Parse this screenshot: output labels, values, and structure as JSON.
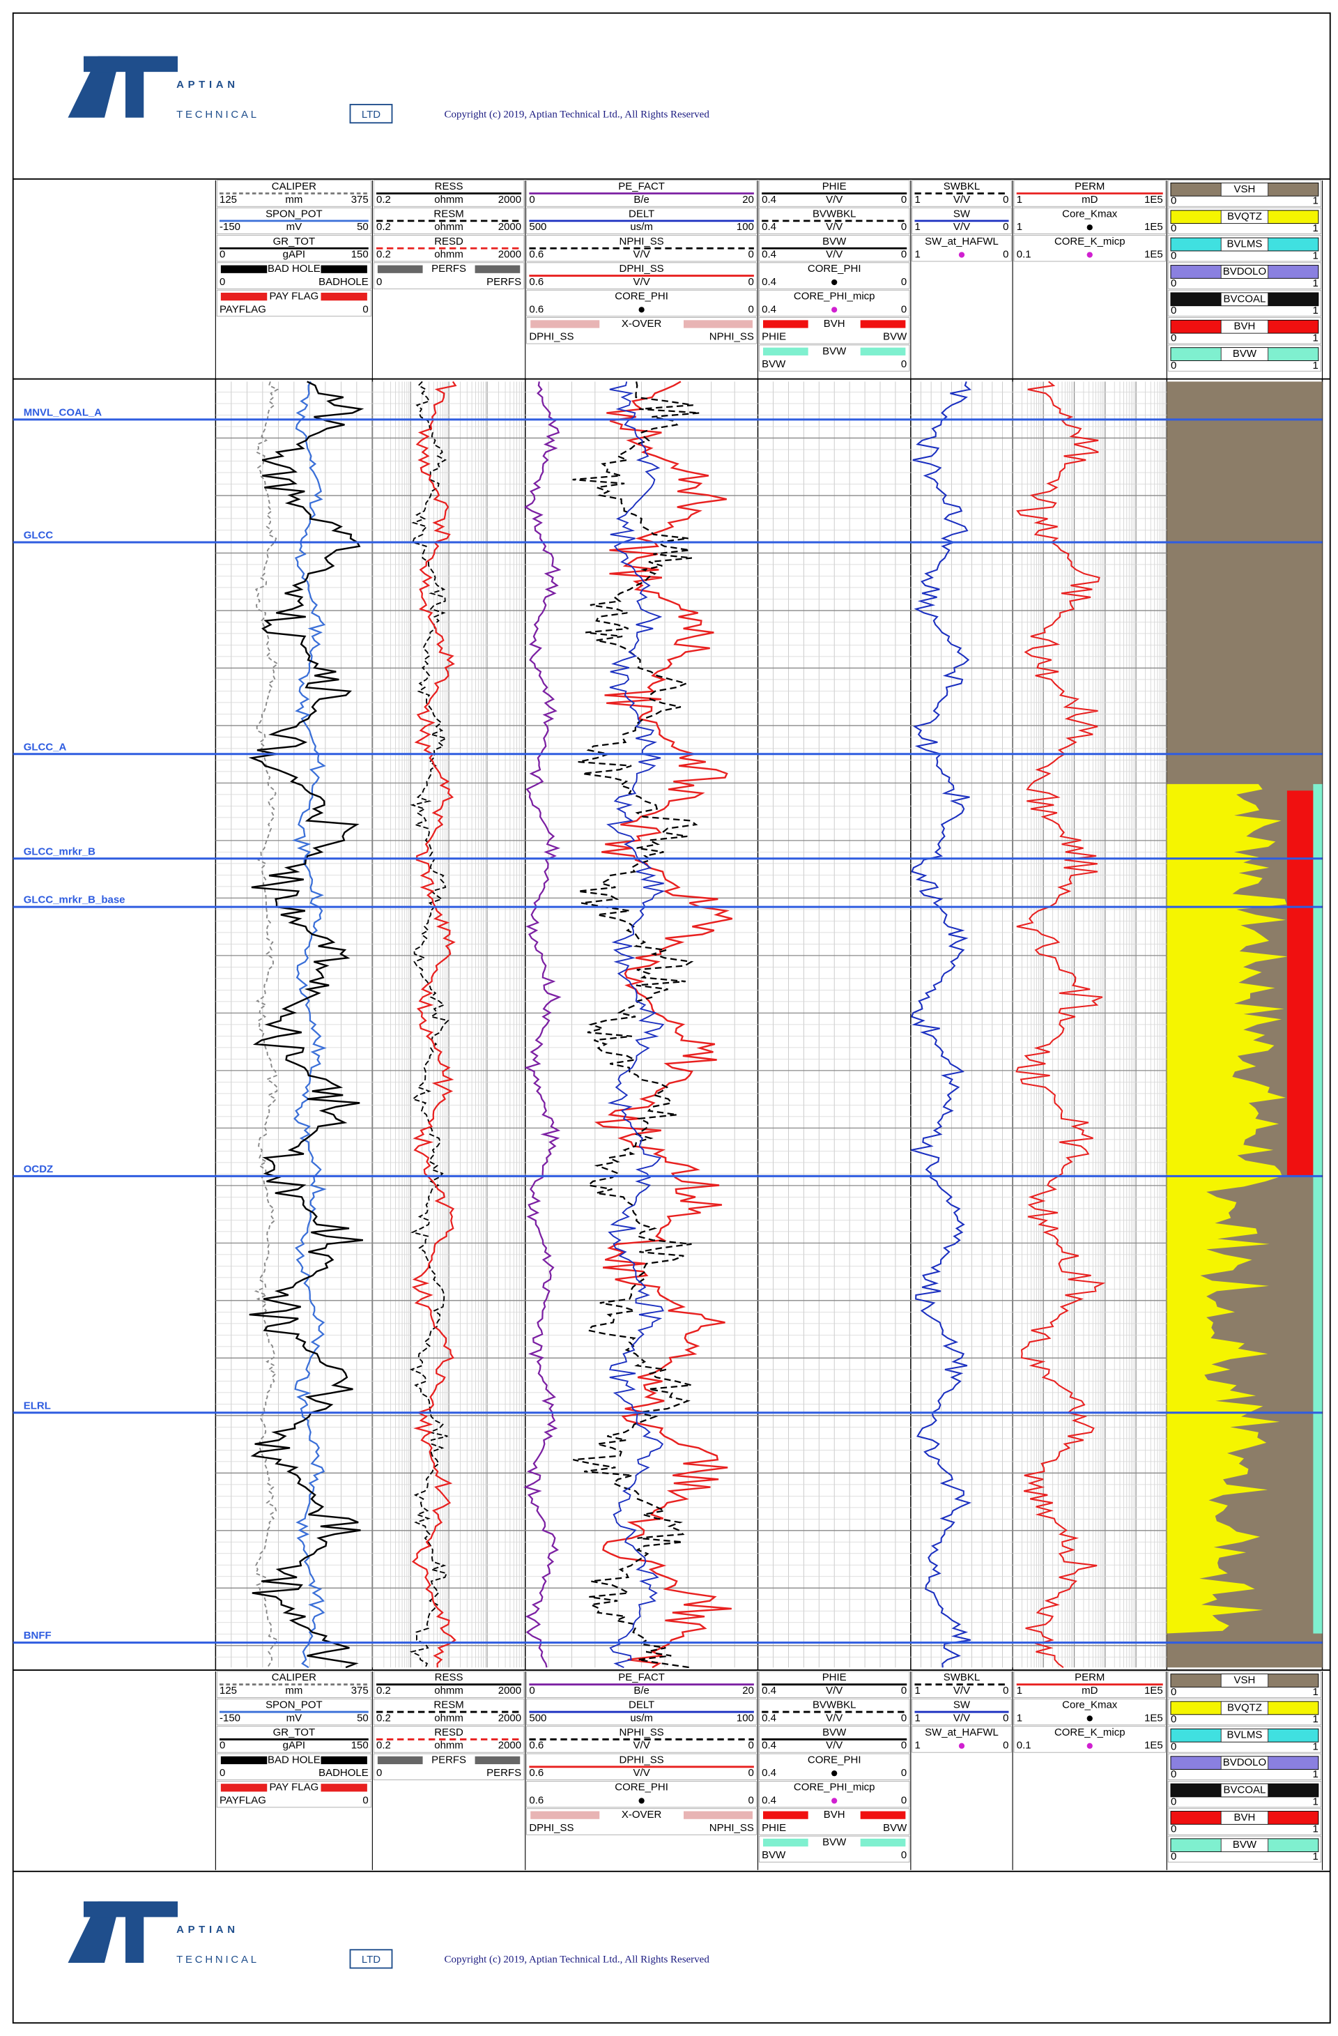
{
  "header": {
    "logo_main": "APTIAN",
    "logo_sub": "TECHNICAL",
    "logo_ltd": "LTD",
    "copyright": "Copyright (c) 2019, Aptian Technical Ltd., All Rights Reserved"
  },
  "tracks": [
    {
      "curves": [
        {
          "name": "CALIPER",
          "left": "125",
          "unit": "mm",
          "right": "375",
          "color": "#777777",
          "dash": "3,2"
        },
        {
          "name": "SPON_POT",
          "left": "-150",
          "unit": "mV",
          "right": "50",
          "color": "#3a6fd8"
        },
        {
          "name": "GR_TOT",
          "left": "0",
          "unit": "gAPI",
          "right": "150",
          "color": "#000000"
        },
        {
          "name": "BAD HOLE",
          "left": "0",
          "right": "BADHOLE",
          "fill": "#000000"
        },
        {
          "name": "PAY FLAG",
          "left": "PAYFLAG",
          "right": "0",
          "fill": "#e8201f"
        }
      ]
    },
    {
      "curves": [
        {
          "name": "RESS",
          "left": "0.2",
          "unit": "ohmm",
          "right": "2000",
          "color": "#000000"
        },
        {
          "name": "RESM",
          "left": "0.2",
          "unit": "ohmm",
          "right": "2000",
          "color": "#000000",
          "dash": "5,3"
        },
        {
          "name": "RESD",
          "left": "0.2",
          "unit": "ohmm",
          "right": "2000",
          "color": "#e8201f",
          "dash": "5,3"
        },
        {
          "name": "PERFS",
          "left": "0",
          "right": "PERFS",
          "fill": "#666666"
        }
      ]
    },
    {
      "curves": [
        {
          "name": "PE_FACT",
          "left": "0",
          "unit": "B/e",
          "right": "20",
          "color": "#7b1fa2"
        },
        {
          "name": "DELT",
          "left": "500",
          "unit": "us/m",
          "right": "100",
          "color": "#1a2fc0"
        },
        {
          "name": "NPHI_SS",
          "left": "0.6",
          "unit": "V/V",
          "right": "0",
          "color": "#000000",
          "dash": "5,3"
        },
        {
          "name": "DPHI_SS",
          "left": "0.6",
          "unit": "V/V",
          "right": "0",
          "color": "#e8201f"
        },
        {
          "name": "CORE_PHI",
          "left": "0.6",
          "right": "0",
          "marker": "#000000"
        },
        {
          "name": "X-OVER",
          "left": "DPHI_SS",
          "right": "NPHI_SS",
          "fill": "#e8b4b4"
        }
      ]
    },
    {
      "curves": [
        {
          "name": "PHIE",
          "left": "0.4",
          "unit": "V/V",
          "right": "0",
          "color": "#000000"
        },
        {
          "name": "BVWBKL",
          "left": "0.4",
          "unit": "V/V",
          "right": "0",
          "color": "#000000",
          "dash": "5,3"
        },
        {
          "name": "BVW",
          "left": "0.4",
          "unit": "V/V",
          "right": "0",
          "color": "#000000"
        },
        {
          "name": "CORE_PHI",
          "left": "0.4",
          "right": "0",
          "marker": "#000000"
        },
        {
          "name": "CORE_PHI_micp",
          "left": "0.4",
          "right": "0",
          "marker": "#d020d0"
        },
        {
          "name": "BVH",
          "left": "PHIE",
          "right": "BVW",
          "fill": "#f01010"
        },
        {
          "name": "BVW",
          "left": "BVW",
          "right": "0",
          "fill": "#7ff0cf"
        }
      ]
    },
    {
      "curves": [
        {
          "name": "SWBKL",
          "left": "1",
          "unit": "V/V",
          "right": "0",
          "color": "#000000",
          "dash": "5,3"
        },
        {
          "name": "SW",
          "left": "1",
          "unit": "V/V",
          "right": "0",
          "color": "#1a2fc0"
        },
        {
          "name": "SW_at_HAFWL",
          "left": "1",
          "right": "0",
          "marker": "#d020d0"
        }
      ]
    },
    {
      "curves": [
        {
          "name": "PERM",
          "left": "1",
          "unit": "mD",
          "right": "1E5",
          "color": "#e8201f"
        },
        {
          "name": "Core_Kmax",
          "left": "1",
          "right": "1E5",
          "marker": "#000000"
        },
        {
          "name": "CORE_K_micp",
          "left": "0.1",
          "right": "1E5",
          "marker": "#d020d0"
        }
      ]
    },
    {
      "curves": [
        {
          "name": "VSH",
          "left": "0",
          "right": "1",
          "fill": "#8c7d68"
        },
        {
          "name": "BVQTZ",
          "left": "0",
          "right": "1",
          "fill": "#f5f500"
        },
        {
          "name": "BVLMS",
          "left": "0",
          "right": "1",
          "fill": "#40e0e0"
        },
        {
          "name": "BVDOLO",
          "left": "0",
          "right": "1",
          "fill": "#8a80e0"
        },
        {
          "name": "BVCOAL",
          "left": "0",
          "right": "1",
          "fill": "#111111"
        },
        {
          "name": "BVH",
          "left": "0",
          "right": "1",
          "fill": "#f01010"
        },
        {
          "name": "BVW",
          "left": "0",
          "right": "1",
          "fill": "#7ff0cf"
        }
      ]
    }
  ],
  "tops": [
    "MNVL_COAL_A",
    "GLCC",
    "GLCC_A",
    "GLCC_mrkr_B",
    "GLCC_mrkr_B_base",
    "OCDZ",
    "ELRL",
    "BNFF"
  ]
}
